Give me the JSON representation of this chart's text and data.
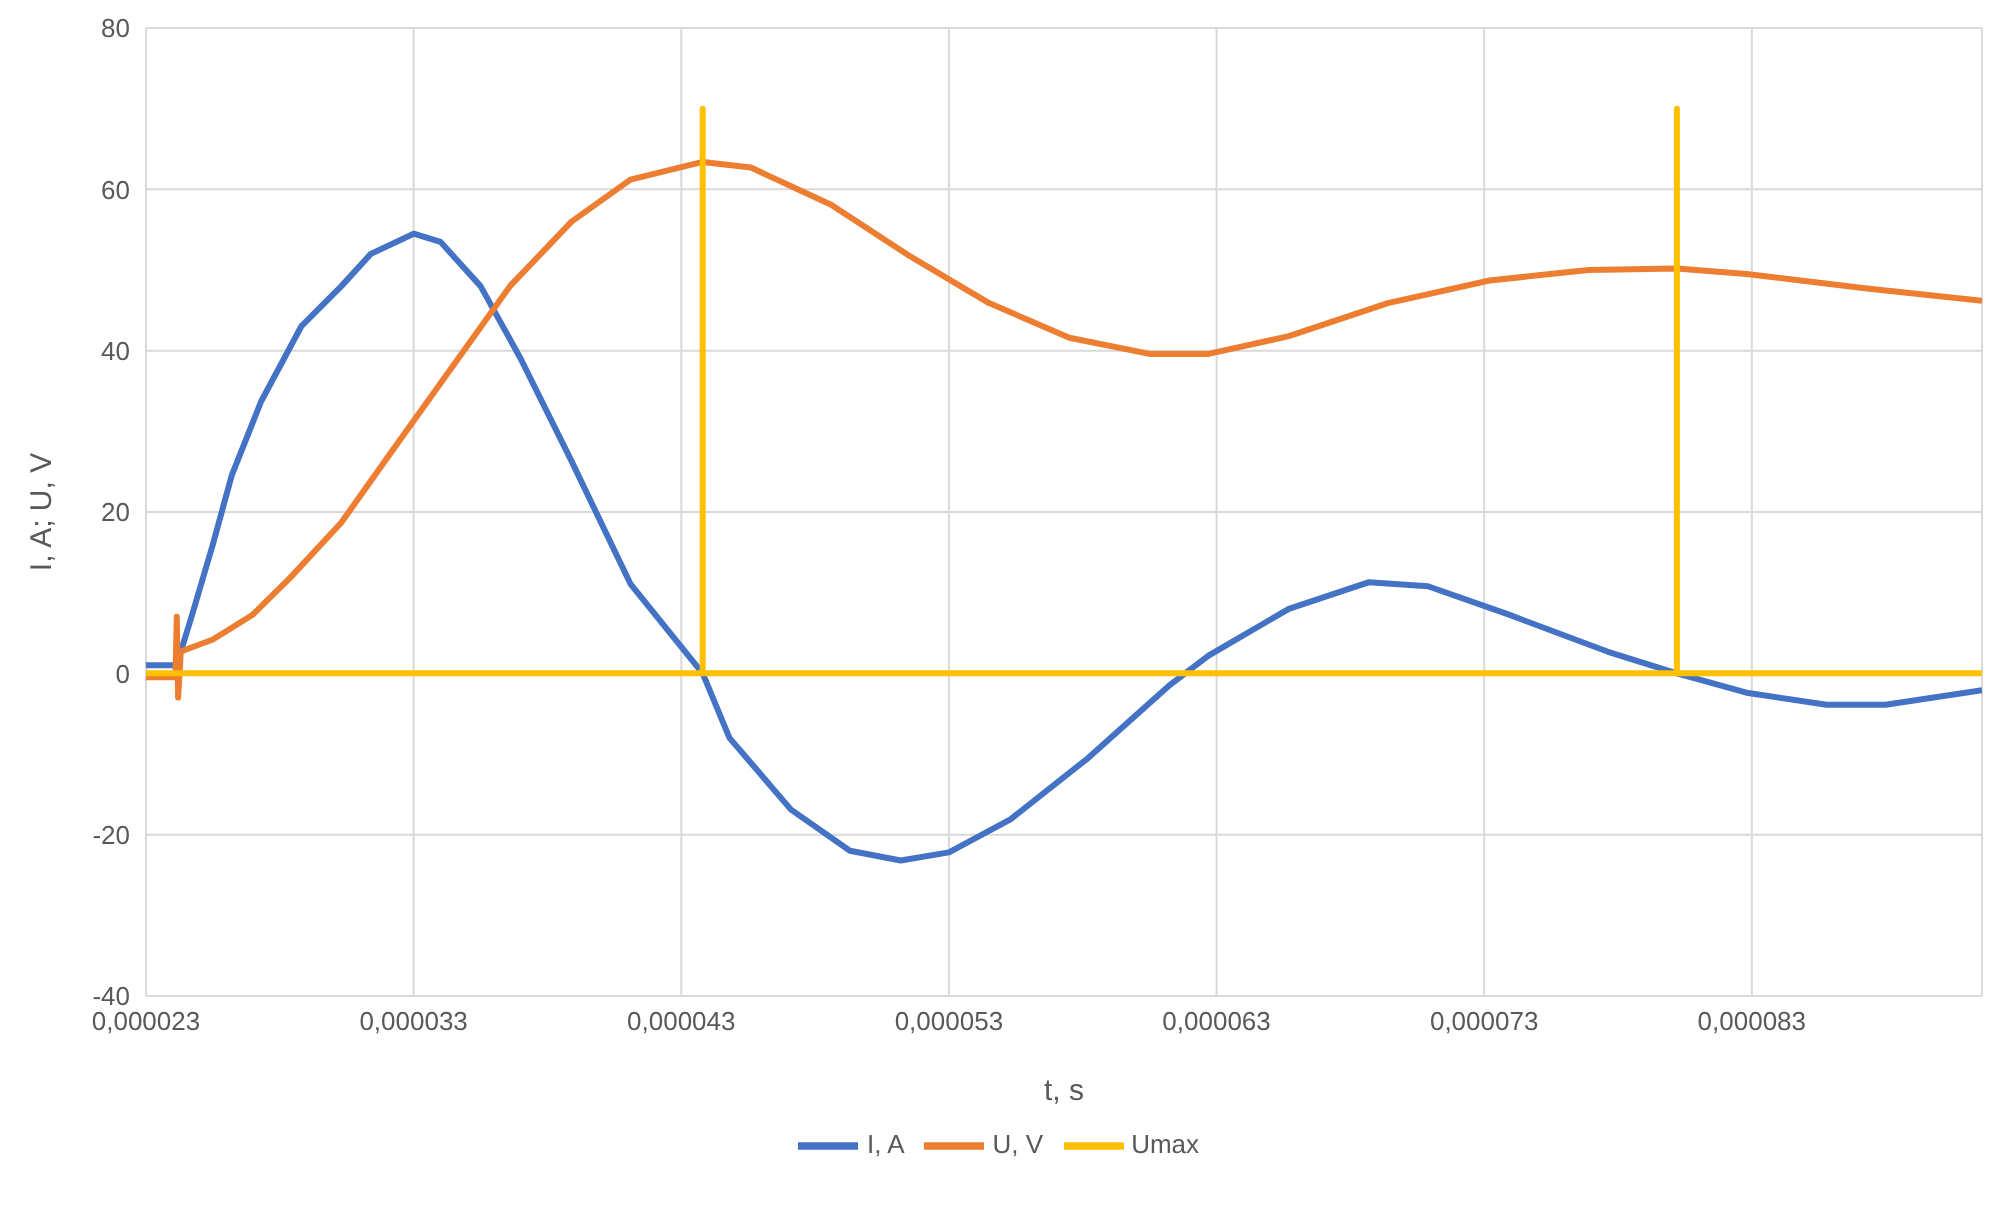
{
  "chart_data": {
    "type": "line",
    "xlabel": "t, s",
    "ylabel": "I, A; U, V",
    "xlim": [
      2.3e-05,
      9.16e-05
    ],
    "xticks": [
      {
        "value": 2.3e-05,
        "label": "0,000023"
      },
      {
        "value": 3.3e-05,
        "label": "0,000033"
      },
      {
        "value": 4.3e-05,
        "label": "0,000043"
      },
      {
        "value": 5.3e-05,
        "label": "0,000053"
      },
      {
        "value": 6.3e-05,
        "label": "0,000063"
      },
      {
        "value": 7.3e-05,
        "label": "0,000073"
      },
      {
        "value": 8.3e-05,
        "label": "0,000083"
      }
    ],
    "ylim": [
      -40,
      80
    ],
    "yticks": [
      -40,
      -20,
      0,
      20,
      40,
      60,
      80
    ],
    "grid": true,
    "legend": "bottom",
    "marker": "none",
    "line_style": "solid",
    "series": [
      {
        "name": "I, A",
        "color": "#4472c4",
        "x": [
          2.3e-05,
          2.41e-05,
          2.43e-05,
          2.47e-05,
          2.55e-05,
          2.62e-05,
          2.73e-05,
          2.88e-05,
          3.03e-05,
          3.14e-05,
          3.3e-05,
          3.4e-05,
          3.55e-05,
          3.7e-05,
          3.89e-05,
          4.11e-05,
          4.38e-05,
          4.48e-05,
          4.71e-05,
          4.93e-05,
          5.12e-05,
          5.3e-05,
          5.53e-05,
          5.82e-05,
          6.12e-05,
          6.27e-05,
          6.57e-05,
          6.87e-05,
          7.09e-05,
          7.39e-05,
          7.76e-05,
          8.02e-05,
          8.28e-05,
          8.58e-05,
          8.8e-05,
          9.16e-05
        ],
        "values": [
          1,
          1,
          2.7,
          7,
          16,
          24.5,
          33.7,
          43,
          48,
          52,
          54.5,
          53.5,
          48,
          39,
          26.3,
          11.1,
          0,
          -8,
          -16.9,
          -22,
          -23.2,
          -22.2,
          -18.1,
          -10.5,
          -1.6,
          2.2,
          8,
          11.3,
          10.8,
          7.3,
          2.7,
          0,
          -2.4,
          -3.9,
          -3.9,
          -2.1
        ]
      },
      {
        "name": "U, V",
        "color": "#ed7d31",
        "x": [
          2.3e-05,
          2.41e-05,
          2.415e-05,
          2.42e-05,
          2.43e-05,
          2.55e-05,
          2.7e-05,
          2.84e-05,
          3.03e-05,
          3.22e-05,
          3.44e-05,
          3.66e-05,
          3.89e-05,
          4.11e-05,
          4.38e-05,
          4.56e-05,
          4.86e-05,
          5.15e-05,
          5.45e-05,
          5.75e-05,
          6.05e-05,
          6.27e-05,
          6.57e-05,
          6.94e-05,
          7.32e-05,
          7.69e-05,
          8.02e-05,
          8.28e-05,
          8.73e-05,
          9.16e-05
        ],
        "values": [
          -0.5,
          -0.5,
          7,
          -3,
          2.7,
          4.2,
          7.3,
          11.9,
          18.7,
          27.6,
          37.8,
          48,
          56,
          61.2,
          63.4,
          62.7,
          58.1,
          51.8,
          45.9,
          41.6,
          39.6,
          39.6,
          41.8,
          45.9,
          48.7,
          50,
          50.2,
          49.5,
          47.7,
          46.2
        ]
      },
      {
        "name": "Umax",
        "color": "#ffc000",
        "x": [
          2.3e-05,
          4.38e-05,
          4.38e-05,
          4.38e-05,
          8.02e-05,
          8.02e-05,
          8.02e-05,
          9.16e-05
        ],
        "values": [
          0,
          0,
          70,
          0,
          0,
          70,
          0,
          0
        ]
      }
    ]
  }
}
